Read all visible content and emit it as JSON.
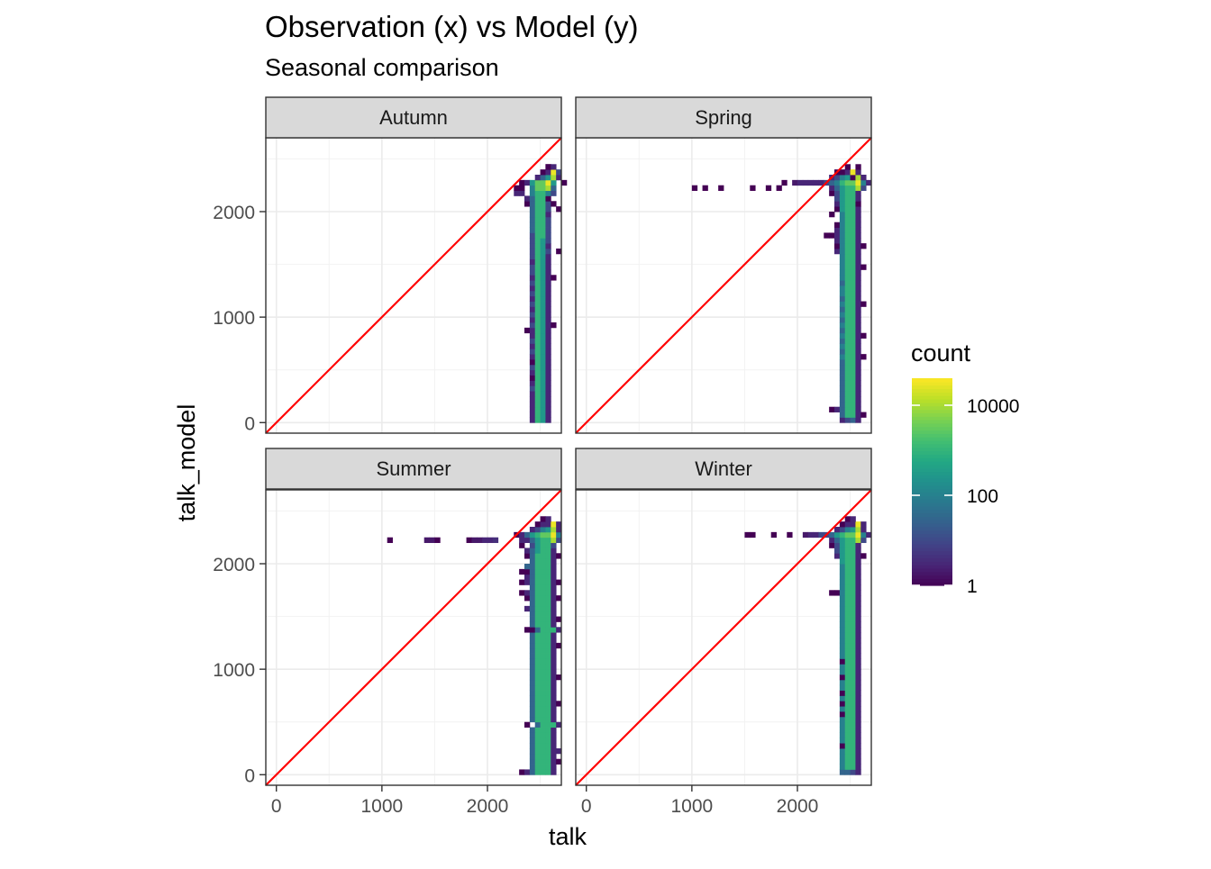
{
  "chart_data": {
    "type": "heatmap",
    "title": "Observation (x) vs Model (y)",
    "subtitle": "Seasonal comparison",
    "xlabel": "talk",
    "ylabel": "talk_model",
    "xlim": [
      -100,
      2700
    ],
    "ylim": [
      -100,
      2700
    ],
    "x_ticks": [
      0,
      1000,
      2000
    ],
    "y_ticks": [
      0,
      1000,
      2000
    ],
    "grid": true,
    "reference_line": {
      "type": "identity",
      "color": "#ff0000"
    },
    "bin_width": 50,
    "legend": {
      "title": "count",
      "scale": "log10",
      "breaks": [
        1,
        100,
        10000
      ],
      "break_labels": [
        "1",
        "100",
        "10000"
      ],
      "position": "right",
      "colors": [
        "#440154",
        "#482576",
        "#414487",
        "#35608d",
        "#2a788e",
        "#21908d",
        "#22a884",
        "#43bf71",
        "#7ad151",
        "#bbdf27",
        "#fde725"
      ]
    },
    "panels": [
      {
        "facet": "Autumn",
        "count_grid": {
          "x0": 2150,
          "y0": 0,
          "dx": 50,
          "dy": 50,
          "levels": [
            "1",
            "3",
            "10",
            "30",
            "100",
            "300",
            "1000",
            "3000",
            "10000",
            "30000"
          ],
          "rows": {
            "2400": [
              "........a...",
              "........ab.."
            ],
            "2350": ".......ab9c.",
            "2300": "......bdf8b.",
            "2250": "...abfhh9f.a",
            "2200": "..aa.ehh8d..",
            "2150": "..bb.eggec..",
            "2100": "....bdgga...",
            "2050": "....adggca..",
            "2000": ".....dggc.a.",
            "1950": ".....dggb...",
            "1900": ".....dggc...",
            "1850": ".....dggc...",
            "1800": ".....dggc...",
            "1750": ".....cggc...",
            "1700": ".....cgfc...",
            "1650": ".....cgfb...",
            "1600": ".....cgfc.a.",
            "1550": ".....cgfb...",
            "1500": ".....bgfb...",
            "1450": ".....cgfb...",
            "1400": ".....cgfb...",
            "1350": ".....bgfba..",
            "1300": ".....cgfb...",
            "1250": ".....bgfb...",
            "1200": ".....cgfb...",
            "1150": ".....bgfb...",
            "1100": ".....cgfb...",
            "1050": ".....bgfb...",
            "1000": ".....cgfb...",
            "950": ".....bgfb...",
            "900": ".....cgfba..",
            "850": "....abgfb...",
            "800": ".....bgfb...",
            "750": ".....cgfb...",
            "700": ".....bgfb...",
            "650": ".....cgfb...",
            "600": ".....bgfb...",
            "550": ".....agfb...",
            "500": ".....cgfb...",
            "450": ".....bgfb...",
            "400": ".....agfb...",
            "350": ".....bgfb...",
            "300": ".....cgfb...",
            "250": ".....bgfb...",
            "200": ".....bgfb...",
            "150": ".....bgfb...",
            "100": ".....bgfb...",
            "50": ".....bgfb...",
            "0": ".....bgfb..."
          }
        }
      },
      {
        "facet": "Spring",
        "count_grid": {
          "x0": 2150,
          "y0": 0,
          "dx": 50,
          "dy": 50,
          "levels": [
            "1",
            "3",
            "10",
            "30",
            "100",
            "300",
            "1000",
            "3000",
            "10000",
            "30000"
          ],
          "rows": {
            "2400": "......a.a..",
            "2350": "....aab9b..",
            "2300": "...bcefa8b.",
            "2250": "bbcdeghh9eb",
            "2200": "...bdfgg8c.",
            "2150": "...acfggb..",
            "2100": "....cfggb..",
            "2050": "....bfgga..",
            "2000": "....afggb..",
            "1950": "...a.eggb..",
            "1900": ".....eggb..",
            "1850": "....aeggb..",
            "1800": "....beggb..",
            "1750": "..aabeggb..",
            "1700": "....beggb..",
            "1650": "....aeggba.",
            "1600": "....beggb..",
            "1550": ".....eggb..",
            "1500": ".....eggb..",
            "1450": ".....eggba.",
            "1400": ".....eggb..",
            "1350": ".....eggb..",
            "1300": ".....dggb..",
            "1250": ".....eggb..",
            "1200": ".....eggb..",
            "1150": ".....dggb..",
            "1100": ".....eggba.",
            "1050": ".....dggb..",
            "1000": ".....eggb..",
            "950": ".....dggb..",
            "900": ".....eggb..",
            "850": ".....dggb..",
            "800": ".....eggba.",
            "750": ".....dggb..",
            "700": ".....eggb..",
            "650": ".....dggb..",
            "600": ".....eggba.",
            "550": ".....dggb..",
            "500": ".....dggb..",
            "450": ".....dggb..",
            "400": ".....dggb..",
            "350": ".....dggb..",
            "300": ".....dggb..",
            "250": ".....dggb..",
            "200": ".....dggb..",
            "150": ".....dggb..",
            "100": "...abdggb..",
            "50": ".....dggba.",
            "0": ".....bcdb.."
          },
          "extra_bins": [
            {
              "x": 1000,
              "y": 2200,
              "count": 1
            },
            {
              "x": 1100,
              "y": 2200,
              "count": 1
            },
            {
              "x": 1250,
              "y": 2200,
              "count": 1
            },
            {
              "x": 1550,
              "y": 2200,
              "count": 1
            },
            {
              "x": 1700,
              "y": 2200,
              "count": 1
            },
            {
              "x": 1800,
              "y": 2200,
              "count": 1
            },
            {
              "x": 1850,
              "y": 2250,
              "count": 1
            },
            {
              "x": 1950,
              "y": 2250,
              "count": 2
            },
            {
              "x": 2000,
              "y": 2250,
              "count": 3
            },
            {
              "x": 2050,
              "y": 2250,
              "count": 3
            },
            {
              "x": 2100,
              "y": 2250,
              "count": 3
            }
          ]
        }
      },
      {
        "facet": "Summer",
        "count_grid": {
          "x0": 2150,
          "y0": 0,
          "dx": 50,
          "dy": 50,
          "levels": [
            "1",
            "3",
            "10",
            "30",
            "100",
            "300",
            "1000",
            "3000",
            "10000",
            "30000"
          ],
          "rows": {
            "2400": ".......ab...",
            "2350": "......abb9b.",
            "2300": ".....bcef8b.",
            "2250": "..abdfghh9e.",
            "2200": "...bbdfgg8c.",
            "2150": "...a.cfggc..",
            "2100": "....bdfggb..",
            "2050": "....adgggba.",
            "2000": ".....dgggb..",
            "1950": "....ddgggb..",
            "1900": "...aadgggb..",
            "1850": "....bdgggb..",
            "1800": "...abdgggba.",
            "1750": ".....dgggb..",
            "1700": "...abdgggb..",
            "1650": "....adgggba.",
            "1600": ".....dgggb..",
            "1550": "....bdgggb..",
            "1500": ".....dgggb..",
            "1450": ".....dgggba.",
            "1400": ".....dgggb..",
            "1350": "....aadgggb.",
            "1300": ".....dgggb..",
            "1250": ".....dgggb..",
            "1200": ".....dgggba.",
            "1150": ".....dgggb..",
            "1100": ".....dgggb..",
            "1050": ".....dgggb..",
            "1000": ".....dgggb..",
            "950": ".....dgggb..",
            "900": ".....dgggba.",
            "850": ".....dgggb..",
            "800": ".....dgggb..",
            "750": ".....dgggb..",
            "700": ".....dgggb..",
            "650": ".....dgggba.",
            "600": ".....dgggb..",
            "550": ".....dgggb..",
            "500": ".....dgggb..",
            "450": "....a.dgggb.",
            "400": ".....dgggb..",
            "350": ".....dgggb..",
            "300": ".....dgggb..",
            "250": ".....dgggb..",
            "200": ".....dgggbb.",
            "150": ".....dgggb..",
            "100": ".....dgggba.",
            "50": ".....dgggb..",
            "0": "...abdgggb.."
          },
          "extra_bins": [
            {
              "x": 1050,
              "y": 2200,
              "count": 1
            },
            {
              "x": 1400,
              "y": 2200,
              "count": 2
            },
            {
              "x": 1450,
              "y": 2200,
              "count": 2
            },
            {
              "x": 1500,
              "y": 2200,
              "count": 1
            },
            {
              "x": 1800,
              "y": 2200,
              "count": 1
            },
            {
              "x": 1850,
              "y": 2200,
              "count": 2
            },
            {
              "x": 1900,
              "y": 2200,
              "count": 2
            },
            {
              "x": 1950,
              "y": 2200,
              "count": 3
            },
            {
              "x": 2000,
              "y": 2200,
              "count": 3
            },
            {
              "x": 2050,
              "y": 2200,
              "count": 4
            }
          ]
        }
      },
      {
        "facet": "Winter",
        "count_grid": {
          "x0": 2150,
          "y0": 0,
          "dx": 50,
          "dy": 50,
          "levels": [
            "1",
            "3",
            "10",
            "30",
            "100",
            "300",
            "1000",
            "3000",
            "10000",
            "30000"
          ],
          "rows": {
            "2400": "......ab...",
            "2350": ".....abb9b.",
            "2300": "....bcef8b.",
            "2250": "bccdfghh9eb",
            "2200": "...bdfgg8c.",
            "2150": "...acfggb..",
            "2100": "....cfggb..",
            "2050": "....bfggba.",
            "2000": ".....fggb..",
            "1950": ".....eggb..",
            "1900": ".....eggb..",
            "1850": ".....eggb..",
            "1800": ".....eggb..",
            "1750": ".....eggb..",
            "1700": "...aaeggb..",
            "1650": ".....eggb..",
            "1600": ".....eggb..",
            "1550": ".....eggb..",
            "1500": ".....eggb..",
            "1450": ".....eggb..",
            "1400": ".....eggb..",
            "1350": ".....eggb..",
            "1300": ".....eggb..",
            "1250": ".....eggb..",
            "1200": ".....eggb..",
            "1150": ".....eggb..",
            "1100": ".....eggb..",
            "1050": ".....aggb..",
            "1000": ".....eggb..",
            "950": ".....eggb..",
            "900": ".....aggb..",
            "850": ".....eggb..",
            "800": ".....eggb..",
            "750": ".....aggb..",
            "700": ".....eggb..",
            "650": ".....aggb..",
            "600": ".....eggb..",
            "550": ".....aggb..",
            "500": ".....eggb..",
            "450": ".....eggb..",
            "400": ".....eggb..",
            "350": ".....eggb..",
            "300": ".....eggb..",
            "250": ".....aggb..",
            "200": ".....eggb..",
            "150": ".....eggb..",
            "100": ".....eggb..",
            "50": ".....eggb..",
            "0": ".....ddcb.."
          },
          "extra_bins": [
            {
              "x": 1500,
              "y": 2250,
              "count": 1
            },
            {
              "x": 1550,
              "y": 2250,
              "count": 1
            },
            {
              "x": 1750,
              "y": 2250,
              "count": 1
            },
            {
              "x": 1900,
              "y": 2250,
              "count": 1
            },
            {
              "x": 2050,
              "y": 2250,
              "count": 2
            },
            {
              "x": 2100,
              "y": 2250,
              "count": 3
            }
          ]
        }
      }
    ]
  }
}
